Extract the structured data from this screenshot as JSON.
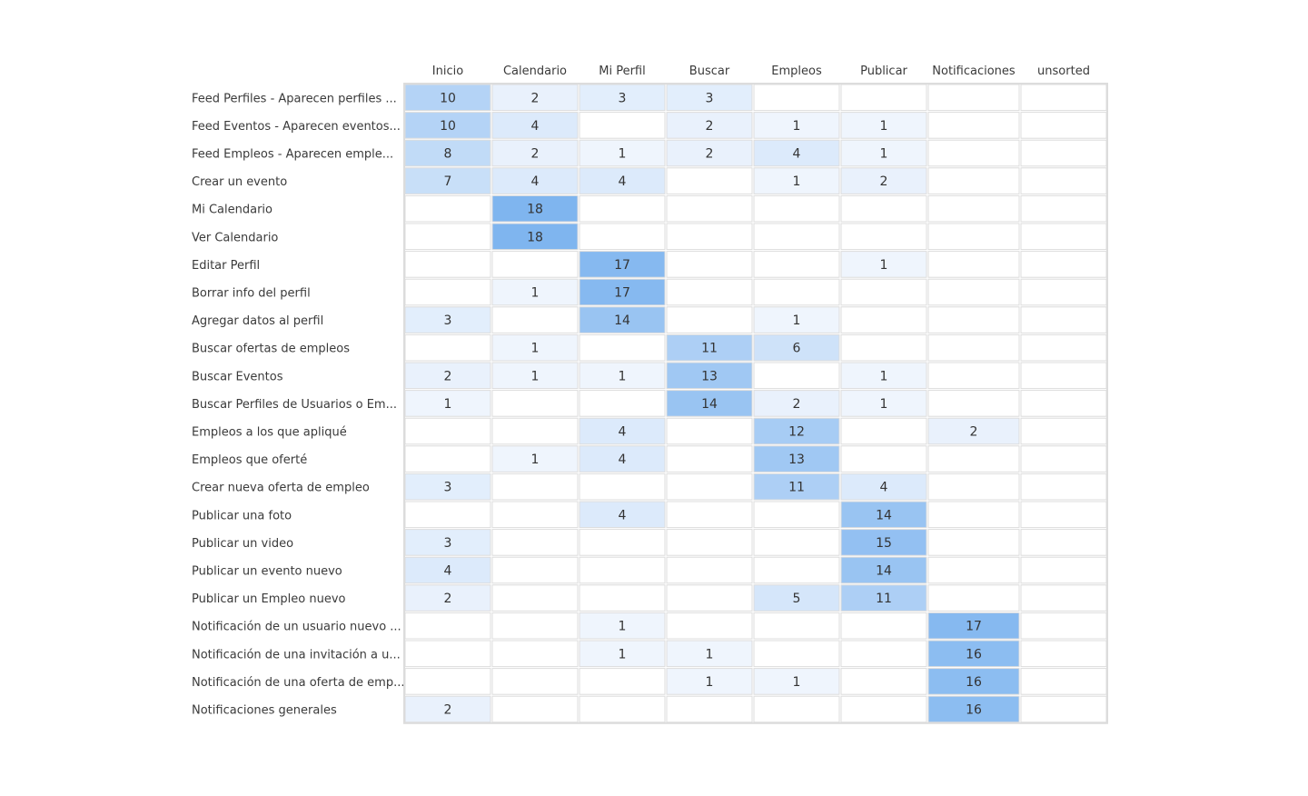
{
  "chart_data": {
    "type": "heatmap",
    "title": "",
    "xlabel": "",
    "ylabel": "",
    "columns": [
      "Inicio",
      "Calendario",
      "Mi Perfil",
      "Buscar",
      "Empleos",
      "Publicar",
      "Notificaciones",
      "unsorted"
    ],
    "rows": [
      "Feed Perfiles - Aparecen perfiles ...",
      "Feed Eventos - Aparecen eventos...",
      "Feed Empleos - Aparecen emple...",
      "Crear un evento",
      "Mi Calendario",
      "Ver Calendario",
      "Editar Perfil",
      "Borrar info del perfil",
      "Agregar datos al perfil",
      "Buscar ofertas de empleos",
      "Buscar Eventos",
      "Buscar Perfiles de Usuarios o Em...",
      "Empleos a los que apliqué",
      "Empleos que oferté",
      "Crear nueva oferta de empleo",
      "Publicar una foto",
      "Publicar un video",
      "Publicar un evento nuevo",
      "Publicar un Empleo nuevo",
      "Notificación de un usuario nuevo ...",
      "Notificación de una invitación a u...",
      "Notificación de una oferta de emp...",
      "Notificaciones generales"
    ],
    "values": [
      [
        10,
        2,
        3,
        3,
        null,
        null,
        null,
        null
      ],
      [
        10,
        4,
        null,
        2,
        1,
        1,
        null,
        null
      ],
      [
        8,
        2,
        1,
        2,
        4,
        1,
        null,
        null
      ],
      [
        7,
        4,
        4,
        null,
        1,
        2,
        null,
        null
      ],
      [
        null,
        18,
        null,
        null,
        null,
        null,
        null,
        null
      ],
      [
        null,
        18,
        null,
        null,
        null,
        null,
        null,
        null
      ],
      [
        null,
        null,
        17,
        null,
        null,
        1,
        null,
        null
      ],
      [
        null,
        1,
        17,
        null,
        null,
        null,
        null,
        null
      ],
      [
        3,
        null,
        14,
        null,
        1,
        null,
        null,
        null
      ],
      [
        null,
        1,
        null,
        11,
        6,
        null,
        null,
        null
      ],
      [
        2,
        1,
        1,
        13,
        null,
        1,
        null,
        null
      ],
      [
        1,
        null,
        null,
        14,
        2,
        1,
        null,
        null
      ],
      [
        null,
        null,
        4,
        null,
        12,
        null,
        2,
        null
      ],
      [
        null,
        1,
        4,
        null,
        13,
        null,
        null,
        null
      ],
      [
        3,
        null,
        null,
        null,
        11,
        4,
        null,
        null
      ],
      [
        null,
        null,
        4,
        null,
        null,
        14,
        null,
        null
      ],
      [
        3,
        null,
        null,
        null,
        null,
        15,
        null,
        null
      ],
      [
        4,
        null,
        null,
        null,
        null,
        14,
        null,
        null
      ],
      [
        2,
        null,
        null,
        null,
        5,
        11,
        null,
        null
      ],
      [
        null,
        null,
        1,
        null,
        null,
        null,
        17,
        null
      ],
      [
        null,
        null,
        1,
        1,
        null,
        null,
        16,
        null
      ],
      [
        null,
        null,
        null,
        1,
        1,
        null,
        16,
        null
      ],
      [
        2,
        null,
        null,
        null,
        null,
        null,
        16,
        null
      ]
    ],
    "color_scale": {
      "low": "#f6f9fe",
      "high": "#7fb5ef",
      "max_value": 18
    },
    "grid_color": "#dcdcdc"
  }
}
